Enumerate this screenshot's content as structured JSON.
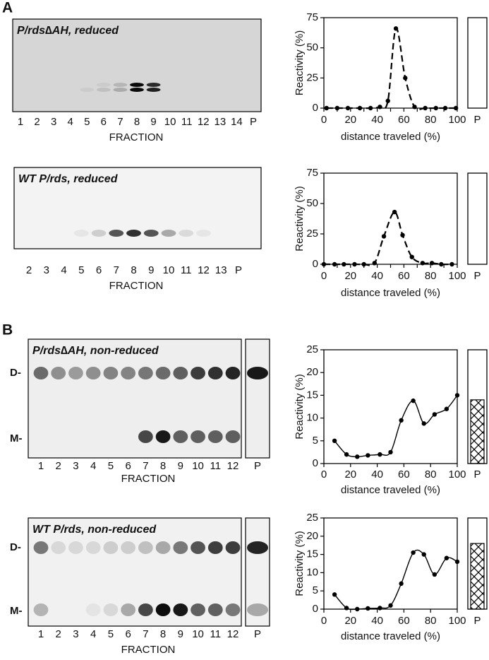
{
  "panel_labels": [
    "A",
    "B"
  ],
  "blots": [
    {
      "title": "P/rds∆AH, reduced",
      "lanes": [
        "1",
        "2",
        "3",
        "4",
        "5",
        "6",
        "7",
        "8",
        "9",
        "10",
        "11",
        "12",
        "13",
        "14",
        "P"
      ],
      "axis_label": "FRACTION"
    },
    {
      "title": "WT P/rds, reduced",
      "lanes": [
        "2",
        "3",
        "4",
        "5",
        "6",
        "7",
        "8",
        "9",
        "10",
        "11",
        "12",
        "13",
        "P"
      ],
      "axis_label": "FRACTION"
    },
    {
      "title": "P/rds∆AH, non-reduced",
      "lanes": [
        "1",
        "2",
        "3",
        "4",
        "5",
        "6",
        "7",
        "8",
        "9",
        "10",
        "11",
        "12",
        "P"
      ],
      "axis_label": "FRACTION",
      "markers": [
        "D-",
        "M-"
      ]
    },
    {
      "title": "WT P/rds, non-reduced",
      "lanes": [
        "1",
        "2",
        "3",
        "4",
        "5",
        "6",
        "7",
        "8",
        "9",
        "10",
        "11",
        "12",
        "P"
      ],
      "axis_label": "FRACTION",
      "markers": [
        "D-",
        "M-"
      ]
    }
  ],
  "chart_data": [
    {
      "type": "line",
      "x_label": "distance traveled (%)",
      "y_label": "Reactivity (%)",
      "line_style": "dashed",
      "color": "#000000",
      "x": [
        2,
        10,
        18,
        27,
        35,
        42,
        48,
        54,
        61,
        68,
        76,
        84,
        91,
        99
      ],
      "values": [
        0,
        0,
        0,
        0,
        0,
        1,
        6,
        66,
        25,
        1,
        0,
        0,
        0,
        0
      ],
      "xlim": [
        0,
        100
      ],
      "xticks": [
        0,
        10,
        20,
        30,
        40,
        50,
        60,
        70,
        80,
        90,
        100
      ],
      "ylim": [
        0,
        75
      ],
      "yticks": [
        0,
        25,
        50,
        75
      ],
      "pellet": {
        "label": "P",
        "value": 0
      }
    },
    {
      "type": "line",
      "x_label": "distance traveled (%)",
      "y_label": "Reactivity (%)",
      "line_style": "dashed",
      "color": "#000000",
      "x": [
        0,
        8,
        15,
        23,
        30,
        38,
        45,
        53,
        59,
        66,
        74,
        81,
        88,
        96
      ],
      "values": [
        0,
        0,
        0,
        0,
        0,
        1,
        23,
        43,
        24,
        6,
        1,
        1,
        0,
        0
      ],
      "xlim": [
        0,
        100
      ],
      "xticks": [
        0,
        10,
        20,
        30,
        40,
        50,
        60,
        70,
        80,
        90,
        100
      ],
      "ylim": [
        0,
        75
      ],
      "yticks": [
        0,
        25,
        50,
        75
      ],
      "pellet": {
        "label": "P",
        "value": 0
      }
    },
    {
      "type": "line",
      "x_label": "distance traveled (%)",
      "y_label": "Reactivity (%)",
      "line_style": "solid",
      "color": "#000000",
      "x": [
        8,
        17,
        25,
        33,
        42,
        50,
        58,
        67,
        75,
        83,
        92,
        100
      ],
      "values": [
        5,
        2,
        1.5,
        1.8,
        2,
        2.5,
        9.5,
        13.8,
        8.8,
        10.8,
        12,
        15
      ],
      "xlim": [
        0,
        100
      ],
      "xticks": [
        0,
        20,
        40,
        60,
        80,
        100
      ],
      "ylim": [
        0,
        25
      ],
      "yticks": [
        0,
        5,
        10,
        15,
        20,
        25
      ],
      "pellet": {
        "label": "P",
        "value": 14
      }
    },
    {
      "type": "line",
      "x_label": "distance traveled (%)",
      "y_label": "Reactivity (%)",
      "line_style": "solid",
      "color": "#000000",
      "x": [
        8,
        17,
        25,
        33,
        42,
        50,
        58,
        67,
        75,
        83,
        92,
        100
      ],
      "values": [
        4,
        0.3,
        0,
        0.2,
        0.3,
        1,
        7,
        15.5,
        15,
        9.5,
        14,
        13
      ],
      "xlim": [
        0,
        100
      ],
      "xticks": [
        0,
        20,
        40,
        60,
        80,
        100
      ],
      "ylim": [
        0,
        25
      ],
      "yticks": [
        0,
        5,
        10,
        15,
        20,
        25
      ],
      "pellet": {
        "label": "P",
        "value": 18
      }
    }
  ]
}
